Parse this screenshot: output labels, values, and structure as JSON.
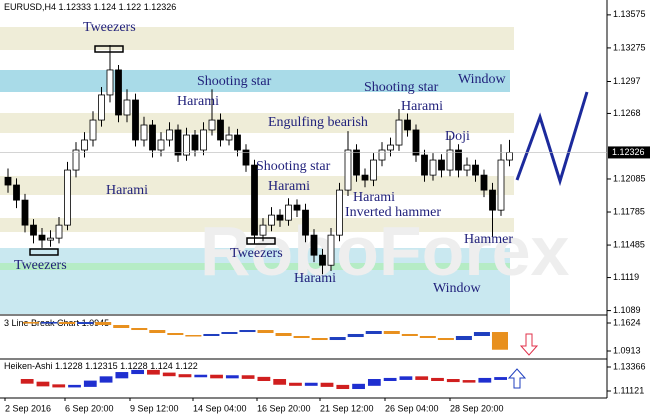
{
  "chart_data": {
    "type": "candlestick",
    "symbol": "EURUSD,H4",
    "header_ohlc": [
      1.12333,
      1.124,
      1.122,
      1.12326
    ],
    "last_price": 1.12326,
    "up_color": "#ffffff",
    "down_color": "#000000",
    "ylim": [
      1.1085,
      1.1371
    ],
    "yticks": [
      1.13575,
      1.13275,
      1.1297,
      1.1268,
      1.12085,
      1.11785,
      1.11485,
      1.1119,
      1.1089
    ],
    "ohlc": [
      [
        1.121,
        1.1218,
        1.1196,
        1.1203
      ],
      [
        1.1203,
        1.1209,
        1.1182,
        1.11893
      ],
      [
        1.11893,
        1.1195,
        1.116,
        1.11666
      ],
      [
        1.11666,
        1.1172,
        1.115,
        1.11575
      ],
      [
        1.11575,
        1.1164,
        1.1146,
        1.1153
      ],
      [
        1.1153,
        1.1162,
        1.1147,
        1.11548
      ],
      [
        1.11548,
        1.1174,
        1.115,
        1.11666
      ],
      [
        1.11666,
        1.1224,
        1.1162,
        1.12166
      ],
      [
        1.12166,
        1.1242,
        1.121,
        1.12348
      ],
      [
        1.12348,
        1.1251,
        1.1228,
        1.12439
      ],
      [
        1.12439,
        1.127,
        1.1238,
        1.1262
      ],
      [
        1.1262,
        1.1292,
        1.1256,
        1.12848
      ],
      [
        1.12848,
        1.133,
        1.1278,
        1.13075
      ],
      [
        1.13075,
        1.1312,
        1.126,
        1.12666
      ],
      [
        1.12666,
        1.129,
        1.126,
        1.12802
      ],
      [
        1.12802,
        1.1286,
        1.1238,
        1.12439
      ],
      [
        1.12439,
        1.1265,
        1.1238,
        1.12575
      ],
      [
        1.12575,
        1.1262,
        1.1228,
        1.12348
      ],
      [
        1.12348,
        1.1251,
        1.1229,
        1.12439
      ],
      [
        1.12439,
        1.126,
        1.1238,
        1.1253
      ],
      [
        1.1253,
        1.1258,
        1.1224,
        1.12302
      ],
      [
        1.12302,
        1.1255,
        1.1225,
        1.12484
      ],
      [
        1.12484,
        1.1253,
        1.1229,
        1.12348
      ],
      [
        1.12348,
        1.126,
        1.123,
        1.1253
      ],
      [
        1.1253,
        1.129,
        1.1248,
        1.1262
      ],
      [
        1.1262,
        1.1268,
        1.1238,
        1.12439
      ],
      [
        1.12439,
        1.1256,
        1.1239,
        1.12484
      ],
      [
        1.12484,
        1.1254,
        1.1229,
        1.12348
      ],
      [
        1.12348,
        1.124,
        1.1215,
        1.12211
      ],
      [
        1.12211,
        1.1226,
        1.115,
        1.11575
      ],
      [
        1.11575,
        1.1173,
        1.1152,
        1.11666
      ],
      [
        1.11666,
        1.1183,
        1.1161,
        1.11757
      ],
      [
        1.11757,
        1.1181,
        1.1165,
        1.11711
      ],
      [
        1.11711,
        1.1191,
        1.1166,
        1.11848
      ],
      [
        1.11848,
        1.119,
        1.1174,
        1.11802
      ],
      [
        1.11802,
        1.1186,
        1.1151,
        1.11575
      ],
      [
        1.11575,
        1.1163,
        1.1133,
        1.11393
      ],
      [
        1.11393,
        1.1145,
        1.1122,
        1.11302
      ],
      [
        1.11302,
        1.1164,
        1.1125,
        1.11575
      ],
      [
        1.11575,
        1.1205,
        1.1152,
        1.11984
      ],
      [
        1.11984,
        1.1252,
        1.1193,
        1.12348
      ],
      [
        1.12348,
        1.124,
        1.1206,
        1.1212
      ],
      [
        1.1212,
        1.1218,
        1.1201,
        1.12075
      ],
      [
        1.12075,
        1.1232,
        1.1202,
        1.12257
      ],
      [
        1.12257,
        1.1242,
        1.122,
        1.12348
      ],
      [
        1.12348,
        1.1246,
        1.1229,
        1.12393
      ],
      [
        1.12393,
        1.1272,
        1.1234,
        1.1262
      ],
      [
        1.1262,
        1.1268,
        1.1247,
        1.1253
      ],
      [
        1.1253,
        1.1258,
        1.1224,
        1.12302
      ],
      [
        1.12302,
        1.1235,
        1.1206,
        1.1212
      ],
      [
        1.1212,
        1.1232,
        1.1207,
        1.12257
      ],
      [
        1.12257,
        1.1231,
        1.121,
        1.12166
      ],
      [
        1.12166,
        1.1248,
        1.1211,
        1.12348
      ],
      [
        1.12348,
        1.124,
        1.121,
        1.12166
      ],
      [
        1.12166,
        1.1228,
        1.1211,
        1.12211
      ],
      [
        1.12211,
        1.1226,
        1.1206,
        1.1212
      ],
      [
        1.1212,
        1.1217,
        1.1192,
        1.11984
      ],
      [
        1.11984,
        1.1205,
        1.1156,
        1.11802
      ],
      [
        1.11802,
        1.124,
        1.1175,
        1.12257
      ],
      [
        1.12257,
        1.1244,
        1.122,
        1.12326
      ]
    ],
    "annotations": [
      "Tweezers",
      "Shooting star",
      "Window",
      "Shooting star",
      "Harami",
      "Harami",
      "Engulfing bearish",
      "Doji",
      "Shooting star",
      "Harami",
      "Harami",
      "Harami",
      "Inverted hammer",
      "Hammer",
      "Tweezers",
      "Tweezers",
      "Harami",
      "Window"
    ],
    "xlabels": [
      "2 Sep 2016",
      "6 Sep 20:00",
      "9 Sep 12:00",
      "14 Sep 04:00",
      "16 Sep 20:00",
      "21 Sep 12:00",
      "26 Sep 04:00",
      "28 Sep 20:00"
    ],
    "line_break": {
      "title": "3 Line Break Chart",
      "last": 1.0945,
      "up_color": "#1f3fbf",
      "down_color": "#e8901e",
      "ylim": [
        1.0735,
        1.1802
      ],
      "yticks": [
        1.1624,
        1.0913
      ],
      "values": [
        1.1649,
        1.1624,
        1.1649,
        1.1599,
        1.1649,
        1.1573,
        1.1497,
        1.1446,
        1.137,
        1.1319,
        1.1294,
        1.1345,
        1.1395,
        1.1446,
        1.137,
        1.1294,
        1.1243,
        1.1192,
        1.1268,
        1.1345,
        1.1421,
        1.1345,
        1.1294,
        1.1243,
        1.1192,
        1.1294,
        1.1395,
        1.0945
      ]
    },
    "heiken_ashi": {
      "title": "Heiken-Ashi",
      "header": [
        1.1228,
        1.12315,
        1.1228,
        1.124,
        1.122
      ],
      "up_color": "#1f2fd0",
      "down_color": "#d01f1f",
      "ylim": [
        1.10467,
        1.14021
      ],
      "yticks": [
        1.13366,
        1.11121
      ],
      "values": [
        1.1215,
        1.119,
        1.1165,
        1.1155,
        1.116,
        1.12,
        1.124,
        1.128,
        1.13,
        1.1275,
        1.126,
        1.125,
        1.1255,
        1.124,
        1.125,
        1.1235,
        1.1215,
        1.118,
        1.117,
        1.118,
        1.116,
        1.114,
        1.117,
        1.1215,
        1.1225,
        1.124,
        1.1225,
        1.1215,
        1.1205,
        1.12,
        1.1225,
        1.1233
      ]
    }
  }
}
